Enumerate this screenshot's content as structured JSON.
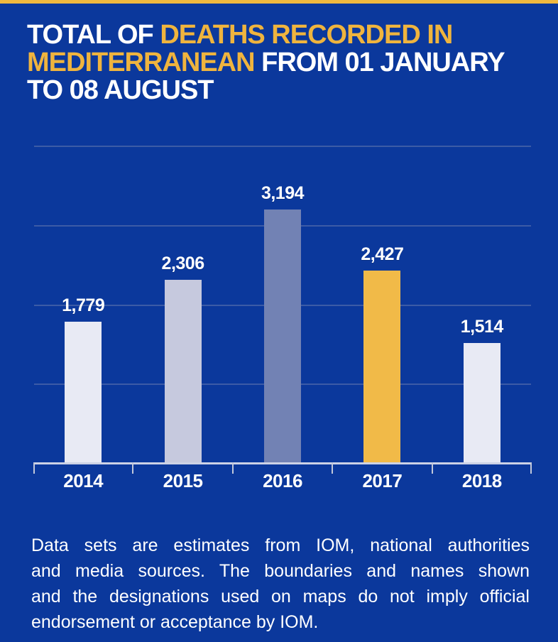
{
  "page": {
    "background_color": "#0b389c",
    "accent_strip_color": "#f0b93f"
  },
  "title": {
    "lines": [
      [
        {
          "text": "TOTAL OF ",
          "color": "#ffffff"
        },
        {
          "text": "DEATHS RECORDED IN",
          "color": "#efb43e"
        }
      ],
      [
        {
          "text": "MEDITERRANEAN",
          "color": "#efb43e"
        },
        {
          "text": " FROM 01 JANUARY",
          "color": "#ffffff"
        }
      ],
      [
        {
          "text": "TO 08 AUGUST",
          "color": "#ffffff"
        }
      ]
    ]
  },
  "chart_data": {
    "type": "bar",
    "title": "TOTAL OF DEATHS RECORDED IN MEDITERRANEAN FROM 01 JANUARY TO 08 AUGUST",
    "categories": [
      "2014",
      "2015",
      "2016",
      "2017",
      "2018"
    ],
    "values": [
      1779,
      2306,
      3194,
      2427,
      1514
    ],
    "value_labels": [
      "1,779",
      "2,306",
      "3,194",
      "2,427",
      "1,514"
    ],
    "bar_colors": [
      "#e8eaf4",
      "#c6c9de",
      "#7282b4",
      "#f1ba48",
      "#e8eaf4"
    ],
    "highlight_category": "2017",
    "xlabel": "",
    "ylabel": "",
    "ylim": [
      0,
      4000
    ],
    "gridline_interval": 1000,
    "grid": true,
    "legend": "none",
    "text_color": "#ffffff",
    "gridline_color": "#3c5ba6",
    "axis_color": "#ccd2e6"
  },
  "footer": {
    "color": "#ffffff",
    "lines": [
      "Data sets are estimates from IOM, national authorities",
      "and media sources. The boundaries and names shown",
      "and the designations used on maps do not imply official",
      "endorsement or acceptance by IOM."
    ],
    "text": "Data sets are estimates from IOM, national authorities and media sources. The boundaries and names shown and the designations used on maps do not imply official endorsement or acceptance by IOM."
  }
}
